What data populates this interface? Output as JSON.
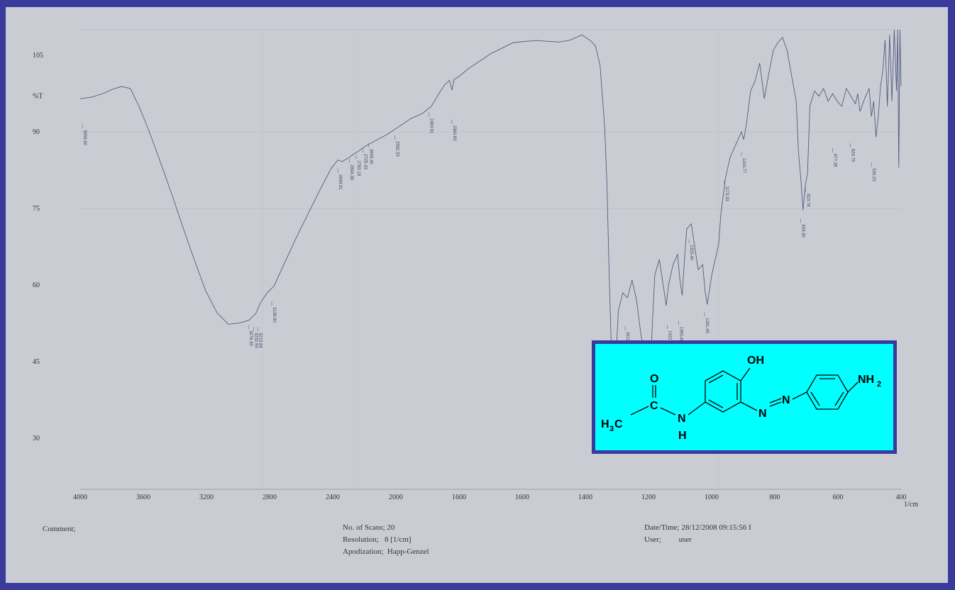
{
  "chart_data": {
    "type": "line",
    "x_direction": "descending",
    "xlim": [
      4000,
      400
    ],
    "ylim": [
      20,
      110
    ],
    "x_ticks": [
      "4000",
      "3600",
      "3200",
      "2800",
      "2400",
      "2000",
      "1600",
      "1600",
      "1400",
      "1200",
      "1000",
      "800",
      "600",
      "400"
    ],
    "x_unit": "1/cm",
    "y_ticks": [
      {
        "label": "105",
        "value": 105
      },
      {
        "label": "%T",
        "value": 97
      },
      {
        "label": "90",
        "value": 90
      },
      {
        "label": "75",
        "value": 75
      },
      {
        "label": "60",
        "value": 60
      },
      {
        "label": "45",
        "value": 45
      },
      {
        "label": "30",
        "value": 30
      }
    ],
    "grid": true,
    "series": [
      {
        "x": [
          4000,
          3950,
          3900,
          3860,
          3820,
          3780,
          3740,
          3700,
          3650,
          3600,
          3550,
          3500,
          3450,
          3400,
          3350,
          3300,
          3260,
          3230,
          3210,
          3180,
          3150,
          3100,
          3050,
          3000,
          2950,
          2900,
          2870,
          2850,
          2820,
          2800,
          2780,
          2750,
          2700,
          2650,
          2600,
          2550,
          2500,
          2460,
          2440,
          2420,
          2400,
          2380,
          2370,
          2360,
          2340,
          2300,
          2250,
          2200,
          2100,
          2000,
          1900,
          1850,
          1800,
          1760,
          1740,
          1720,
          1700,
          1690,
          1680,
          1670,
          1660,
          1650,
          1640,
          1620,
          1600,
          1580,
          1560,
          1540,
          1530,
          1520,
          1510,
          1500,
          1490,
          1480,
          1460,
          1440,
          1430,
          1420,
          1400,
          1380,
          1370,
          1360,
          1350,
          1340,
          1320,
          1300,
          1290,
          1270,
          1260,
          1250,
          1230,
          1200,
          1190,
          1170,
          1150,
          1130,
          1110,
          1100,
          1090,
          1080,
          1060,
          1040,
          1020,
          1000,
          980,
          960,
          940,
          920,
          900,
          880,
          860,
          850,
          840,
          830,
          820,
          810,
          800,
          780,
          760,
          740,
          720,
          700,
          680,
          660,
          640,
          620,
          600,
          590,
          580,
          560,
          540,
          530,
          520,
          510,
          500,
          490,
          480,
          470,
          460,
          450,
          440,
          430,
          420,
          415,
          410,
          405,
          400
        ],
        "y": [
          96.5,
          96.8,
          97.5,
          98.3,
          98.9,
          98.5,
          94.8,
          90.4,
          84.3,
          78.0,
          71.4,
          65.0,
          58.9,
          54.6,
          52.3,
          52.6,
          53.1,
          54.4,
          56.5,
          58.5,
          59.8,
          64.7,
          69.5,
          74.0,
          78.5,
          82.8,
          84.5,
          84.2,
          85.0,
          85.7,
          86.2,
          87.2,
          88.4,
          89.6,
          91.1,
          92.6,
          93.6,
          95.0,
          96.5,
          98.0,
          99.3,
          100.1,
          98.2,
          100.3,
          100.8,
          102.3,
          103.8,
          105.3,
          107.5,
          107.9,
          107.6,
          108.0,
          109.0,
          107.8,
          106.8,
          103.0,
          91.0,
          80.0,
          62.0,
          47.0,
          43.7,
          46.0,
          55.0,
          58.5,
          57.5,
          61.0,
          57.0,
          50.0,
          48.0,
          45.5,
          41.0,
          43.0,
          53.0,
          62.0,
          65.0,
          59.0,
          56.0,
          60.0,
          64.0,
          66.0,
          61.0,
          58.0,
          65.0,
          71.0,
          72.0,
          66.0,
          63.0,
          64.0,
          59.0,
          56.2,
          62.0,
          68.0,
          74.0,
          81.0,
          85.0,
          87.0,
          89.0,
          90.0,
          88.5,
          91.0,
          98.0,
          100.0,
          103.5,
          96.5,
          101.5,
          106.0,
          107.5,
          108.5,
          106.0,
          101.0,
          96.0,
          86.0,
          81.0,
          74.7,
          79.5,
          82.0,
          95.0,
          98.0,
          97.0,
          98.5,
          96.0,
          97.5,
          96.0,
          95.0,
          98.5,
          97.0,
          95.5,
          97.5,
          94.0,
          96.5,
          98.5,
          93.0,
          96.0,
          89.0,
          93.0,
          99.0,
          102.0,
          108.0,
          95.0,
          109.0,
          96.0,
          110.0,
          98.0,
          110.0,
          83.0,
          110.0,
          99.0
        ]
      }
    ],
    "peak_labels": [
      {
        "x": 3990,
        "y": 91.5,
        "text": "3959.90"
      },
      {
        "x": 3262,
        "y": 52.2,
        "text": "3276.30"
      },
      {
        "x": 3240,
        "y": 51.8,
        "text": "3232.93"
      },
      {
        "x": 3220,
        "y": 51.8,
        "text": "3215.84"
      },
      {
        "x": 3160,
        "y": 56.8,
        "text": "3139.90"
      },
      {
        "x": 2870,
        "y": 82.8,
        "text": "2848.91"
      },
      {
        "x": 2820,
        "y": 84.7,
        "text": "2804.36"
      },
      {
        "x": 2790,
        "y": 85.5,
        "text": "2782.19"
      },
      {
        "x": 2760,
        "y": 86.8,
        "text": "2725.43"
      },
      {
        "x": 2735,
        "y": 87.8,
        "text": "2693.40"
      },
      {
        "x": 2620,
        "y": 89.3,
        "text": "2582.33"
      },
      {
        "x": 2470,
        "y": 93.8,
        "text": "2463.91"
      },
      {
        "x": 2370,
        "y": 92.4,
        "text": "2360.83"
      },
      {
        "x": 1668,
        "y": 42.5,
        "text": "1660.76"
      },
      {
        "x": 1610,
        "y": 52.0,
        "text": "1612.49"
      },
      {
        "x": 1545,
        "y": 45.0,
        "text": "1550.39"
      },
      {
        "x": 1512,
        "y": 39.5,
        "text": "1508.12"
      },
      {
        "x": 1425,
        "y": 52.2,
        "text": "1422.59"
      },
      {
        "x": 1375,
        "y": 53.0,
        "text": "1390.48"
      },
      {
        "x": 1330,
        "y": 69.0,
        "text": "1325.40"
      },
      {
        "x": 1262,
        "y": 54.7,
        "text": "1261.45"
      },
      {
        "x": 1175,
        "y": 80.5,
        "text": "1173.33"
      },
      {
        "x": 1100,
        "y": 86.0,
        "text": "1100.77"
      },
      {
        "x": 840,
        "y": 73.0,
        "text": "833.30"
      },
      {
        "x": 818,
        "y": 79.0,
        "text": "823.78"
      },
      {
        "x": 700,
        "y": 86.8,
        "text": "677.28"
      },
      {
        "x": 622,
        "y": 87.8,
        "text": "624.79"
      },
      {
        "x": 530,
        "y": 84.0,
        "text": "530.23"
      }
    ]
  },
  "footer": {
    "comment_label": "Comment;",
    "scans_line": "No. of Scans; 20",
    "resolution_line": "Resolution;   8 [1/cm]",
    "apodization_line": "Apodization;  Happ-Genzel",
    "datetime_line": "Date/Time; 28/12/2008 09:15:56 I",
    "user_line": "User;         user"
  },
  "structure": {
    "background_color": "#00ffff",
    "border_color": "#3a3a9c",
    "atoms": {
      "methyl_h": "H",
      "methyl_sub": "3",
      "methyl_c": "C",
      "carbonyl_c": "C",
      "carbonyl_o": "O",
      "amide_n": "N",
      "amide_h": "H",
      "hydroxyl": "OH",
      "azo_n1": "N",
      "azo_n2": "N",
      "amine": "NH",
      "amine_sub": "2"
    }
  }
}
